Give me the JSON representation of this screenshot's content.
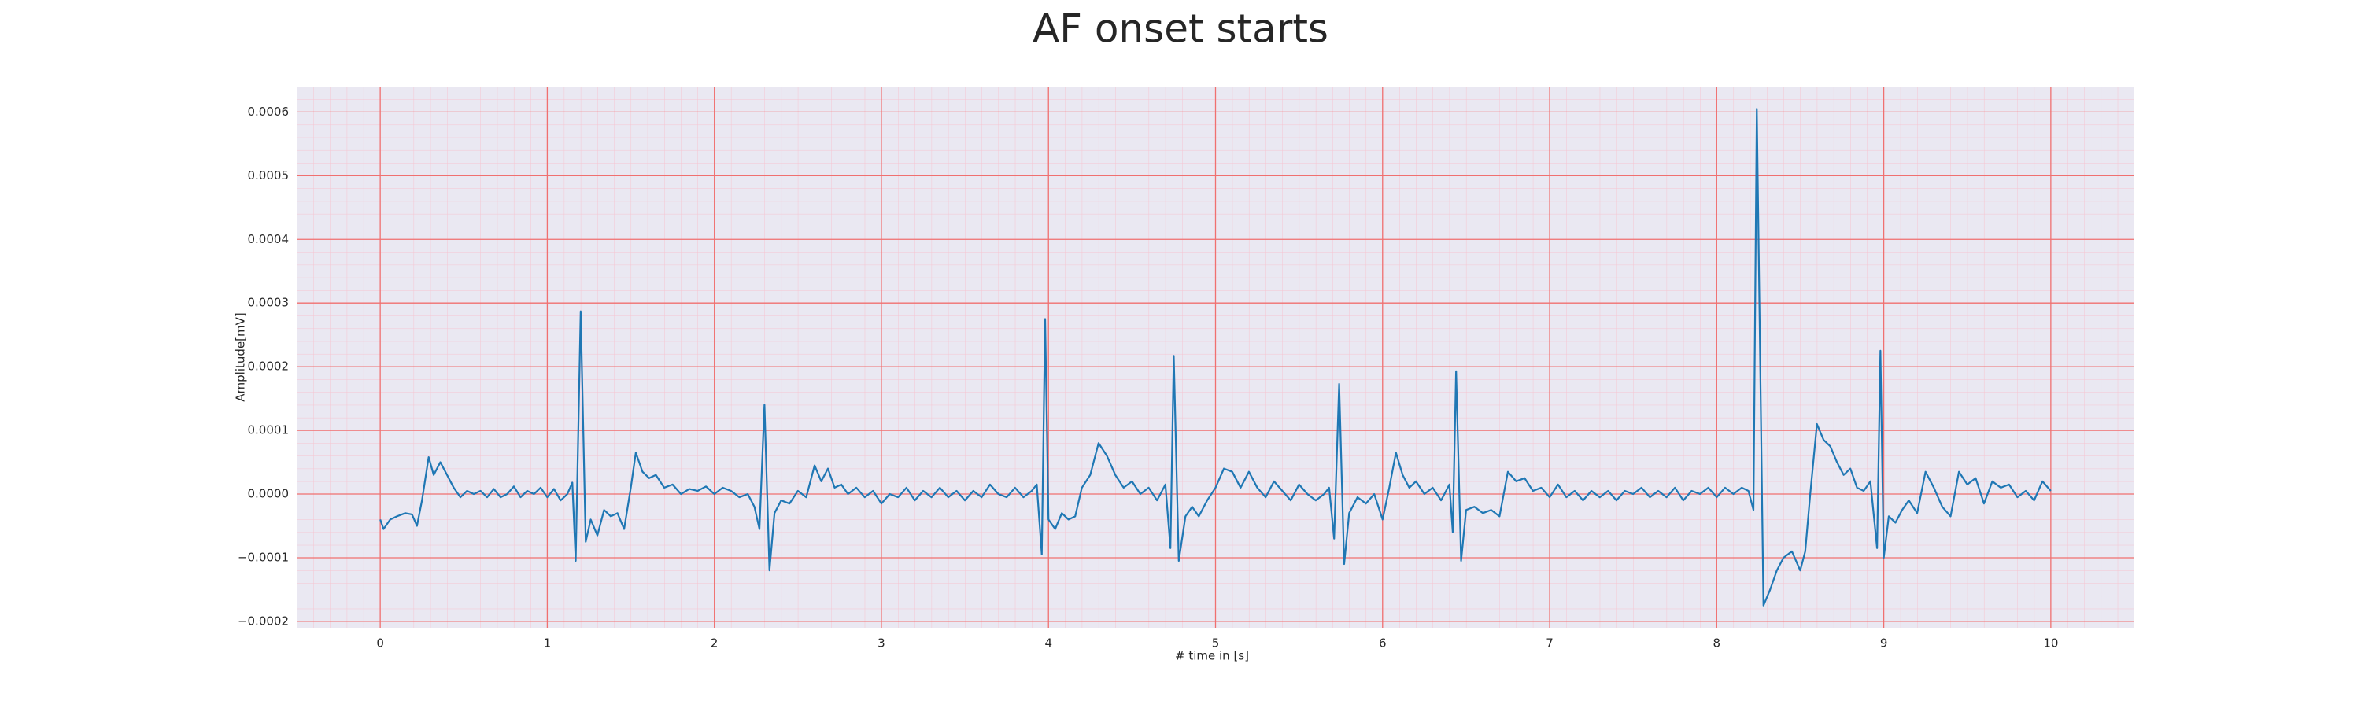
{
  "chart_data": {
    "type": "line",
    "title": "AF onset starts",
    "x_label": "# time in [s]",
    "y_label": "Amplitude[mV]",
    "xlim": [
      -0.5,
      10.5
    ],
    "ylim": [
      -0.00021,
      0.00064
    ],
    "xticks": [
      0,
      1,
      2,
      3,
      4,
      5,
      6,
      7,
      8,
      9,
      10
    ],
    "yticks": [
      {
        "value": -0.0002,
        "label": "−0.0002"
      },
      {
        "value": -0.0001,
        "label": "−0.0001"
      },
      {
        "value": 0,
        "label": "0.0000"
      },
      0.0001,
      0.0002,
      0.0003,
      0.0004,
      0.0005,
      0.0006
    ],
    "grid": true,
    "minor_grid": true,
    "x": [
      0,
      0.02,
      0.06,
      0.1,
      0.15,
      0.19,
      0.22,
      0.25,
      0.29,
      0.32,
      0.36,
      0.4,
      0.44,
      0.48,
      0.52,
      0.56,
      0.6,
      0.64,
      0.68,
      0.72,
      0.76,
      0.8,
      0.84,
      0.88,
      0.92,
      0.96,
      1.0,
      1.04,
      1.08,
      1.12,
      1.15,
      1.17,
      1.2,
      1.23,
      1.26,
      1.3,
      1.34,
      1.38,
      1.42,
      1.46,
      1.5,
      1.53,
      1.57,
      1.61,
      1.65,
      1.7,
      1.75,
      1.8,
      1.85,
      1.9,
      1.95,
      2.0,
      2.05,
      2.1,
      2.15,
      2.2,
      2.24,
      2.27,
      2.3,
      2.33,
      2.36,
      2.4,
      2.45,
      2.5,
      2.55,
      2.6,
      2.64,
      2.68,
      2.72,
      2.76,
      2.8,
      2.85,
      2.9,
      2.95,
      3.0,
      3.05,
      3.1,
      3.15,
      3.2,
      3.25,
      3.3,
      3.35,
      3.4,
      3.45,
      3.5,
      3.55,
      3.6,
      3.65,
      3.7,
      3.75,
      3.8,
      3.85,
      3.9,
      3.93,
      3.96,
      3.98,
      4.0,
      4.04,
      4.08,
      4.12,
      4.16,
      4.2,
      4.25,
      4.3,
      4.35,
      4.4,
      4.45,
      4.5,
      4.55,
      4.6,
      4.65,
      4.7,
      4.73,
      4.75,
      4.78,
      4.82,
      4.86,
      4.9,
      4.95,
      5.0,
      5.05,
      5.1,
      5.15,
      5.2,
      5.25,
      5.3,
      5.35,
      5.4,
      5.45,
      5.5,
      5.55,
      5.6,
      5.65,
      5.68,
      5.71,
      5.74,
      5.77,
      5.8,
      5.85,
      5.9,
      5.95,
      6.0,
      6.04,
      6.08,
      6.12,
      6.16,
      6.2,
      6.25,
      6.3,
      6.35,
      6.4,
      6.42,
      6.44,
      6.47,
      6.5,
      6.55,
      6.6,
      6.65,
      6.7,
      6.75,
      6.8,
      6.85,
      6.9,
      6.95,
      7.0,
      7.05,
      7.1,
      7.15,
      7.2,
      7.25,
      7.3,
      7.35,
      7.4,
      7.45,
      7.5,
      7.55,
      7.6,
      7.65,
      7.7,
      7.75,
      7.8,
      7.85,
      7.9,
      7.95,
      8.0,
      8.05,
      8.1,
      8.15,
      8.19,
      8.22,
      8.24,
      8.28,
      8.32,
      8.36,
      8.4,
      8.45,
      8.5,
      8.53,
      8.56,
      8.6,
      8.64,
      8.68,
      8.72,
      8.76,
      8.8,
      8.84,
      8.88,
      8.92,
      8.96,
      8.98,
      9.0,
      9.03,
      9.07,
      9.11,
      9.15,
      9.2,
      9.25,
      9.3,
      9.35,
      9.4,
      9.45,
      9.5,
      9.55,
      9.6,
      9.65,
      9.7,
      9.75,
      9.8,
      9.85,
      9.9,
      9.95,
      10.0
    ],
    "series": [
      {
        "color": "#1f77b4",
        "values": [
          -4e-05,
          -5.5e-05,
          -4e-05,
          -3.5e-05,
          -3e-05,
          -3.2e-05,
          -5e-05,
          -1e-05,
          5.8e-05,
          3e-05,
          5e-05,
          3e-05,
          1e-05,
          -5e-06,
          5e-06,
          0,
          5e-06,
          -5e-06,
          8e-06,
          -5e-06,
          0,
          1.2e-05,
          -5e-06,
          5e-06,
          0,
          1e-05,
          -5e-06,
          8e-06,
          -1e-05,
          0,
          1.8e-05,
          -0.000105,
          0.000287,
          -7.5e-05,
          -4e-05,
          -6.5e-05,
          -2.5e-05,
          -3.5e-05,
          -3e-05,
          -5.5e-05,
          1e-05,
          6.5e-05,
          3.5e-05,
          2.5e-05,
          3e-05,
          1e-05,
          1.5e-05,
          0,
          8e-06,
          5e-06,
          1.2e-05,
          0,
          1e-05,
          5e-06,
          -5e-06,
          0,
          -2e-05,
          -5.5e-05,
          0.00014,
          -0.00012,
          -3e-05,
          -1e-05,
          -1.5e-05,
          5e-06,
          -5e-06,
          4.5e-05,
          2e-05,
          4e-05,
          1e-05,
          1.5e-05,
          0,
          1e-05,
          -5e-06,
          5e-06,
          -1.5e-05,
          0,
          -5e-06,
          1e-05,
          -1e-05,
          5e-06,
          -5e-06,
          1e-05,
          -5e-06,
          5e-06,
          -1e-05,
          5e-06,
          -5e-06,
          1.5e-05,
          0,
          -5e-06,
          1e-05,
          -5e-06,
          5e-06,
          1.5e-05,
          -9.5e-05,
          0.000275,
          -4e-05,
          -5.5e-05,
          -3e-05,
          -4e-05,
          -3.5e-05,
          1e-05,
          3e-05,
          8e-05,
          6e-05,
          3e-05,
          1e-05,
          2e-05,
          0,
          1e-05,
          -1e-05,
          1.5e-05,
          -8.5e-05,
          0.000217,
          -0.000105,
          -3.5e-05,
          -2e-05,
          -3.5e-05,
          -1e-05,
          1e-05,
          4e-05,
          3.5e-05,
          1e-05,
          3.5e-05,
          1e-05,
          -5e-06,
          2e-05,
          5e-06,
          -1e-05,
          1.5e-05,
          0,
          -1e-05,
          0,
          1e-05,
          -7e-05,
          0.000173,
          -0.00011,
          -3e-05,
          -5e-06,
          -1.5e-05,
          0,
          -4e-05,
          1e-05,
          6.5e-05,
          3e-05,
          1e-05,
          2e-05,
          0,
          1e-05,
          -1e-05,
          1.5e-05,
          -6e-05,
          0.000193,
          -0.000105,
          -2.5e-05,
          -2e-05,
          -3e-05,
          -2.5e-05,
          -3.5e-05,
          3.5e-05,
          2e-05,
          2.5e-05,
          5e-06,
          1e-05,
          -5e-06,
          1.5e-05,
          -5e-06,
          5e-06,
          -1e-05,
          5e-06,
          -5e-06,
          5e-06,
          -1e-05,
          5e-06,
          0,
          1e-05,
          -5e-06,
          5e-06,
          -5e-06,
          1e-05,
          -1e-05,
          5e-06,
          0,
          1e-05,
          -5e-06,
          1e-05,
          0,
          1e-05,
          5e-06,
          -2.5e-05,
          0.000605,
          -0.000175,
          -0.00015,
          -0.00012,
          -0.0001,
          -9e-05,
          -0.00012,
          -9e-05,
          0,
          0.00011,
          8.5e-05,
          7.5e-05,
          5e-05,
          3e-05,
          4e-05,
          1e-05,
          5e-06,
          2e-05,
          -8.5e-05,
          0.000225,
          -0.0001,
          -3.5e-05,
          -4.5e-05,
          -2.5e-05,
          -1e-05,
          -3e-05,
          3.5e-05,
          1e-05,
          -2e-05,
          -3.5e-05,
          3.5e-05,
          1.5e-05,
          2.5e-05,
          -1.5e-05,
          2e-05,
          1e-05,
          1.5e-05,
          -5e-06,
          5e-06,
          -1e-05,
          2e-05,
          5e-06
        ]
      }
    ]
  }
}
